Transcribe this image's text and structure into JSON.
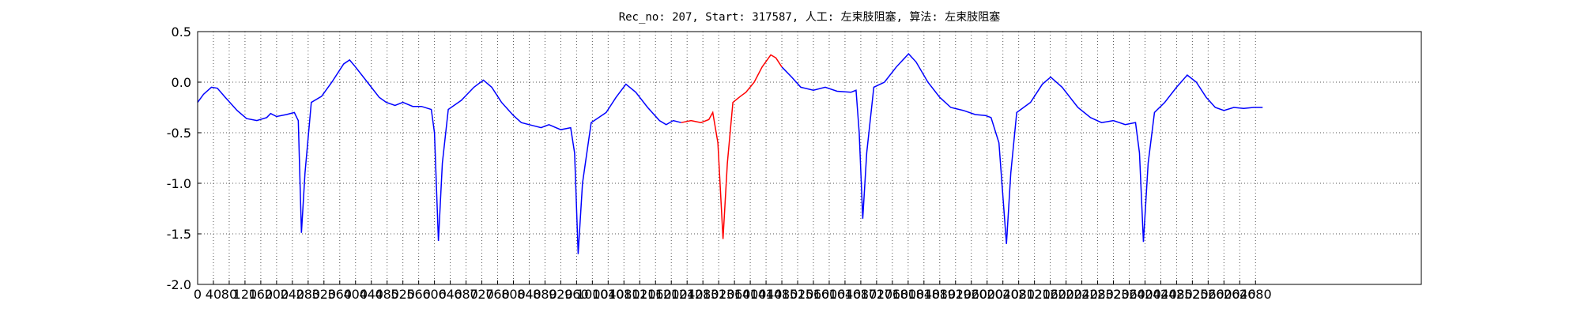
{
  "chart_data": {
    "type": "line",
    "title": "Rec_no: 207, Start: 317587, 人工: 左束肢阻塞, 算法: 左束肢阻塞",
    "x": [
      0,
      15,
      35,
      50,
      70,
      100,
      124,
      150,
      175,
      185,
      200,
      225,
      245,
      255,
      263,
      272,
      288,
      314,
      340,
      370,
      385,
      400,
      430,
      460,
      478,
      500,
      520,
      545,
      567,
      592,
      600,
      610,
      620,
      635,
      668,
      700,
      724,
      745,
      770,
      800,
      820,
      850,
      870,
      890,
      920,
      945,
      955,
      964,
      975,
      997,
      1035,
      1060,
      1085,
      1110,
      1140,
      1170,
      1187,
      1205,
      1225,
      1250,
      1275,
      1295,
      1305,
      1318,
      1331,
      1342,
      1356,
      1375,
      1389,
      1410,
      1430,
      1452,
      1465,
      1480,
      1505,
      1528,
      1560,
      1590,
      1620,
      1655,
      1668,
      1676,
      1685,
      1695,
      1713,
      1740,
      1770,
      1801,
      1820,
      1850,
      1880,
      1908,
      1940,
      1970,
      1996,
      2010,
      2030,
      2049,
      2060,
      2075,
      2110,
      2140,
      2161,
      2190,
      2230,
      2262,
      2290,
      2320,
      2350,
      2376,
      2386,
      2396,
      2408,
      2424,
      2450,
      2480,
      2507,
      2530,
      2555,
      2578,
      2600,
      2625,
      2650,
      2675,
      2698
    ],
    "series": [
      {
        "name": "blue",
        "color": "#0000ff",
        "values": [
          -0.2,
          -0.12,
          -0.05,
          -0.06,
          -0.15,
          -0.28,
          -0.36,
          -0.38,
          -0.35,
          -0.31,
          -0.34,
          -0.32,
          -0.3,
          -0.38,
          -1.49,
          -0.9,
          -0.2,
          -0.14,
          0.0,
          0.18,
          0.22,
          0.15,
          0.0,
          -0.15,
          -0.2,
          -0.23,
          -0.2,
          -0.24,
          -0.24,
          -0.27,
          -0.5,
          -1.57,
          -0.8,
          -0.27,
          -0.18,
          -0.05,
          0.02,
          -0.05,
          -0.2,
          -0.33,
          -0.4,
          -0.43,
          -0.45,
          -0.42,
          -0.47,
          -0.45,
          -0.7,
          -1.7,
          -1.0,
          -0.4,
          -0.3,
          -0.15,
          -0.02,
          -0.1,
          -0.25,
          -0.38,
          -0.42,
          -0.38,
          -0.4,
          null,
          null,
          null,
          null,
          null,
          null,
          null,
          null,
          null,
          null,
          null,
          null,
          null,
          null,
          0.15,
          0.05,
          -0.05,
          -0.08,
          -0.05,
          -0.09,
          -0.1,
          -0.08,
          -0.5,
          -1.35,
          -0.7,
          -0.05,
          0.0,
          0.15,
          0.28,
          0.2,
          0.0,
          -0.15,
          -0.25,
          -0.28,
          -0.32,
          -0.33,
          -0.35,
          -0.6,
          -1.6,
          -0.9,
          -0.3,
          -0.2,
          -0.02,
          0.05,
          -0.05,
          -0.25,
          -0.35,
          -0.4,
          -0.38,
          -0.42,
          -0.4,
          -0.7,
          -1.58,
          -0.8,
          -0.3,
          -0.2,
          -0.05,
          0.07,
          0.0,
          -0.15,
          -0.25,
          -0.28,
          -0.25,
          -0.26,
          -0.25,
          -0.25
        ]
      },
      {
        "name": "red",
        "color": "#ff0000",
        "values": [
          null,
          null,
          null,
          null,
          null,
          null,
          null,
          null,
          null,
          null,
          null,
          null,
          null,
          null,
          null,
          null,
          null,
          null,
          null,
          null,
          null,
          null,
          null,
          null,
          null,
          null,
          null,
          null,
          null,
          null,
          null,
          null,
          null,
          null,
          null,
          null,
          null,
          null,
          null,
          null,
          null,
          null,
          null,
          null,
          null,
          null,
          null,
          null,
          null,
          null,
          null,
          null,
          null,
          null,
          null,
          null,
          null,
          null,
          -0.4,
          -0.38,
          -0.4,
          -0.37,
          -0.3,
          -0.6,
          -1.55,
          -0.8,
          -0.2,
          -0.14,
          -0.1,
          0.0,
          0.15,
          0.27,
          0.24,
          0.15,
          null,
          null,
          null,
          null,
          null,
          null,
          null,
          null,
          null,
          null,
          null,
          null,
          null,
          null,
          null,
          null,
          null,
          null,
          null,
          null,
          null,
          null,
          null,
          null,
          null,
          null,
          null,
          null,
          null,
          null,
          null,
          null,
          null,
          null,
          null,
          null,
          null,
          null,
          null,
          null,
          null,
          null,
          null,
          null,
          null,
          null,
          null,
          null,
          null,
          null,
          null
        ]
      }
    ],
    "xlim": [
      0,
      3100
    ],
    "xticks": [
      0,
      40,
      80,
      120,
      160,
      200,
      240,
      280,
      320,
      360,
      400,
      440,
      480,
      520,
      560,
      600,
      640,
      680,
      720,
      760,
      800,
      840,
      880,
      920,
      960,
      1000,
      1040,
      1080,
      1120,
      1160,
      1200,
      1240,
      1280,
      1320,
      1360,
      1400,
      1440,
      1480,
      1520,
      1560,
      1600,
      1640,
      1680,
      1720,
      1760,
      1800,
      1840,
      1880,
      1920,
      1960,
      2000,
      2040,
      2080,
      2120,
      2160,
      2200,
      2240,
      2280,
      2320,
      2360,
      2400,
      2440,
      2480,
      2520,
      2560,
      2600,
      2640,
      2680
    ],
    "ylim": [
      -2.0,
      0.5
    ],
    "yticks": [
      {
        "value": -2.0,
        "label": "-2.0"
      },
      -1.5,
      {
        "value": -1.0,
        "label": "-1.0"
      },
      -0.5,
      {
        "value": 0,
        "label": "0.0"
      },
      0.5
    ],
    "grid": true
  }
}
